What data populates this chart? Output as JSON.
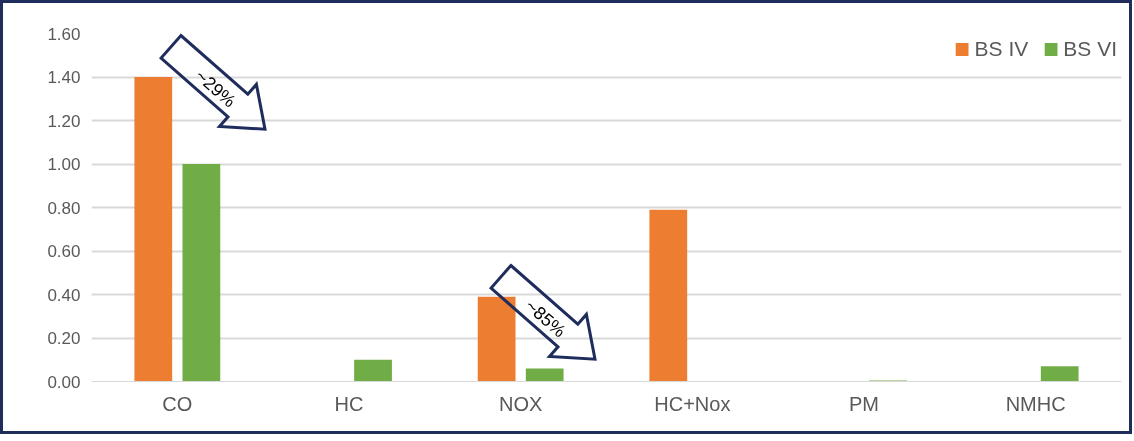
{
  "chart_data": {
    "type": "bar",
    "categories": [
      "CO",
      "HC",
      "NOX",
      "HC+Nox",
      "PM",
      "NMHC"
    ],
    "series": [
      {
        "name": "BS IV",
        "color": "#ed7d31",
        "values": [
          1.4,
          null,
          0.39,
          0.79,
          null,
          null
        ]
      },
      {
        "name": "BS VI",
        "color": "#70ad47",
        "values": [
          1.0,
          0.1,
          0.06,
          null,
          0.005,
          0.07
        ]
      }
    ],
    "ylim": [
      0,
      1.6
    ],
    "yticks": [
      {
        "value": 0,
        "label": "0.00"
      },
      {
        "value": 0.2,
        "label": "0.20"
      },
      {
        "value": 0.4,
        "label": "0.40"
      },
      {
        "value": 0.6,
        "label": "0.60"
      },
      {
        "value": 0.8,
        "label": "0.80"
      },
      {
        "value": 1.0,
        "label": "1.00"
      },
      {
        "value": 1.2,
        "label": "1.20"
      },
      {
        "value": 1.4,
        "label": "1.40"
      },
      {
        "value": 1.6,
        "label": "1.60"
      }
    ],
    "grid": "y",
    "legend": "top right",
    "annotations": [
      "~29%",
      "~85%"
    ]
  }
}
